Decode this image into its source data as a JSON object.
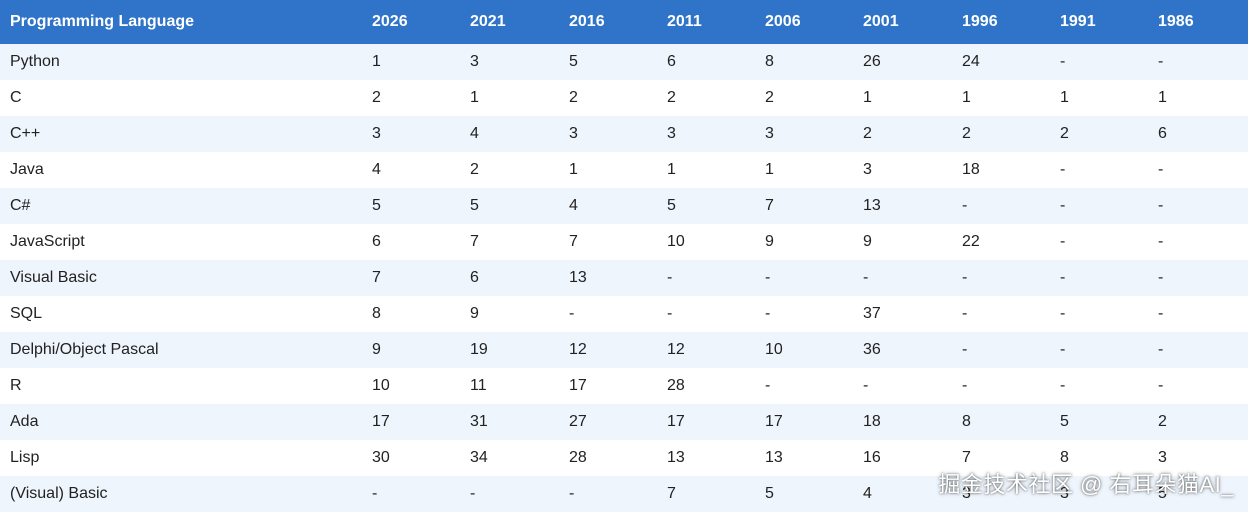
{
  "table": {
    "headers": [
      "Programming Language",
      "2026",
      "2021",
      "2016",
      "2011",
      "2006",
      "2001",
      "1996",
      "1991",
      "1986"
    ],
    "rows": [
      [
        "Python",
        "1",
        "3",
        "5",
        "6",
        "8",
        "26",
        "24",
        "-",
        "-"
      ],
      [
        "C",
        "2",
        "1",
        "2",
        "2",
        "2",
        "1",
        "1",
        "1",
        "1"
      ],
      [
        "C++",
        "3",
        "4",
        "3",
        "3",
        "3",
        "2",
        "2",
        "2",
        "6"
      ],
      [
        "Java",
        "4",
        "2",
        "1",
        "1",
        "1",
        "3",
        "18",
        "-",
        "-"
      ],
      [
        "C#",
        "5",
        "5",
        "4",
        "5",
        "7",
        "13",
        "-",
        "-",
        "-"
      ],
      [
        "JavaScript",
        "6",
        "7",
        "7",
        "10",
        "9",
        "9",
        "22",
        "-",
        "-"
      ],
      [
        "Visual Basic",
        "7",
        "6",
        "13",
        "-",
        "-",
        "-",
        "-",
        "-",
        "-"
      ],
      [
        "SQL",
        "8",
        "9",
        "-",
        "-",
        "-",
        "37",
        "-",
        "-",
        "-"
      ],
      [
        "Delphi/Object Pascal",
        "9",
        "19",
        "12",
        "12",
        "10",
        "36",
        "-",
        "-",
        "-"
      ],
      [
        "R",
        "10",
        "11",
        "17",
        "28",
        "-",
        "-",
        "-",
        "-",
        "-"
      ],
      [
        "Ada",
        "17",
        "31",
        "27",
        "17",
        "17",
        "18",
        "8",
        "5",
        "2"
      ],
      [
        "Lisp",
        "30",
        "34",
        "28",
        "13",
        "13",
        "16",
        "7",
        "8",
        "3"
      ],
      [
        "(Visual) Basic",
        "-",
        "-",
        "-",
        "7",
        "5",
        "4",
        "3",
        "3",
        "5"
      ]
    ]
  },
  "watermark": "掘金技术社区 @ 右耳朵猫AI_",
  "colors": {
    "header_bg": "#2f74c8",
    "header_text": "#ffffff",
    "row_alt_bg": "#eef5fc",
    "row_bg": "#ffffff",
    "cell_text": "#222222"
  }
}
